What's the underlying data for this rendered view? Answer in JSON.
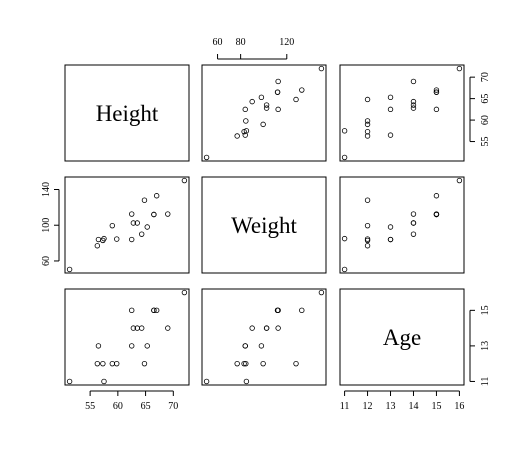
{
  "chart_data": {
    "type": "scatter-matrix",
    "variables": [
      {
        "name": "Height",
        "values": [
          69.0,
          56.5,
          65.3,
          62.8,
          63.5,
          57.3,
          59.8,
          62.5,
          62.5,
          59.0,
          51.3,
          64.3,
          56.3,
          66.5,
          72.0,
          64.8,
          67.0,
          57.5,
          66.5
        ],
        "lim": [
          50.47,
          72.83
        ]
      },
      {
        "name": "Weight",
        "values": [
          112.5,
          84.0,
          98.0,
          102.5,
          102.5,
          83.0,
          84.5,
          112.5,
          84.0,
          99.5,
          50.5,
          90.0,
          77.0,
          112.0,
          150.0,
          128.0,
          133.0,
          85.0,
          112.0
        ],
        "lim": [
          46.52,
          153.98
        ]
      },
      {
        "name": "Age",
        "values": [
          14,
          13,
          13,
          14,
          14,
          12,
          12,
          15,
          13,
          12,
          11,
          14,
          12,
          15,
          16,
          12,
          15,
          11,
          15
        ],
        "lim": [
          10.8,
          16.2
        ]
      }
    ],
    "axes": [
      {
        "side": "top",
        "variable": 1,
        "ticks": [
          60,
          80,
          120
        ]
      },
      {
        "side": "right",
        "variable": 0,
        "ticks": [
          55,
          60,
          65,
          70
        ]
      },
      {
        "side": "left",
        "variable": 1,
        "ticks": [
          60,
          100,
          140
        ]
      },
      {
        "side": "bottom",
        "variable": 0,
        "ticks": [
          55,
          60,
          65,
          70
        ]
      },
      {
        "side": "bottom",
        "variable": 2,
        "ticks": [
          11,
          12,
          13,
          14,
          15,
          16
        ]
      },
      {
        "side": "right",
        "variable": 2,
        "ticks": [
          11,
          13,
          15
        ]
      }
    ]
  }
}
